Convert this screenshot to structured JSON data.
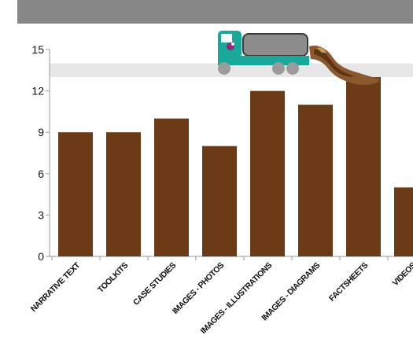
{
  "chart_data": {
    "type": "bar",
    "categories": [
      "NARRATIVE TEXT",
      "TOOLKITS",
      "CASE STUDIES",
      "IMAGES - PHOTOS",
      "IMAGES - ILLUSTRATIONS",
      "IMAGES - DIAGRAMS",
      "FACTSHEETS",
      "VIDEOS"
    ],
    "values": [
      9,
      9,
      10,
      8,
      12,
      11,
      13,
      5
    ],
    "yticks": [
      "0",
      "3",
      "6",
      "9",
      "12",
      "15"
    ],
    "ylim": [
      0,
      15
    ],
    "highlight_band": [
      13,
      14
    ],
    "title": "",
    "xlabel": "",
    "ylabel": "",
    "grid": false,
    "colors": {
      "bar": "#6b3b17",
      "header": "#878787",
      "band": "#e7e7e7",
      "axis": "#999999",
      "truck_cab": "#1aa89b",
      "truck_tank": "#8c8c8c",
      "truck_logo": "#8a2a7a"
    },
    "decoration": "truck-pouring-icon"
  }
}
